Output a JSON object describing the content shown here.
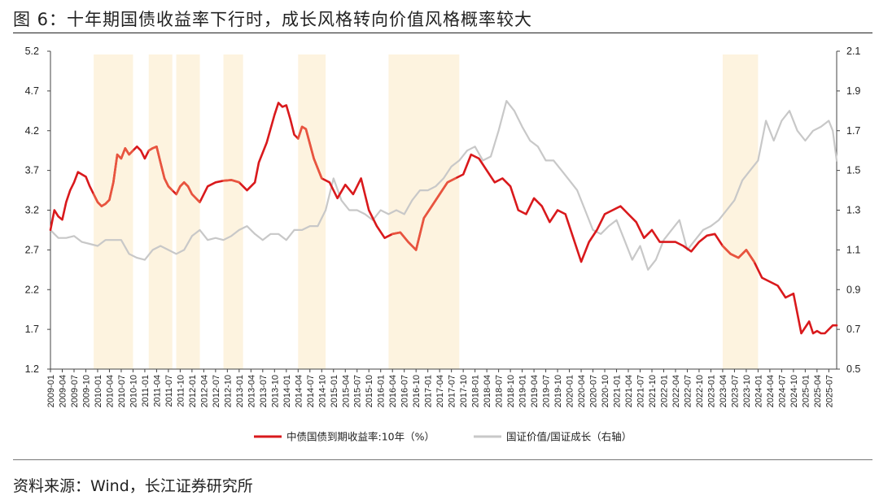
{
  "figure": {
    "title": "图 6：十年期国债收益率下行时，成长风格转向价值风格概率较大",
    "source": "资料来源：Wind，长江证券研究所"
  },
  "chart_data": {
    "type": "line",
    "title": "十年期国债收益率下行时，成长风格转向价值风格概率较大",
    "x_start": "2009-01",
    "x_end": "2025-09",
    "ylim_left": [
      1.2,
      5.2
    ],
    "ylim_right": [
      0.5,
      2.1
    ],
    "yticks_left": [
      "1.2",
      "1.7",
      "2.2",
      "2.7",
      "3.2",
      "3.7",
      "4.2",
      "4.7",
      "5.2"
    ],
    "yticks_right": [
      "0.5",
      "0.7",
      "0.9",
      "1.1",
      "1.3",
      "1.5",
      "1.7",
      "1.9",
      "2.1"
    ],
    "xticks": [
      "2009-01",
      "2009-04",
      "2009-07",
      "2009-10",
      "2010-01",
      "2010-04",
      "2010-07",
      "2010-10",
      "2011-01",
      "2011-04",
      "2011-07",
      "2011-10",
      "2012-01",
      "2012-04",
      "2012-07",
      "2012-10",
      "2013-01",
      "2013-04",
      "2013-07",
      "2013-10",
      "2014-01",
      "2014-04",
      "2014-07",
      "2014-10",
      "2015-01",
      "2015-04",
      "2015-07",
      "2015-10",
      "2016-01",
      "2016-04",
      "2016-07",
      "2016-10",
      "2017-01",
      "2017-04",
      "2017-07",
      "2017-10",
      "2018-01",
      "2018-04",
      "2018-07",
      "2018-10",
      "2019-01",
      "2019-04",
      "2019-07",
      "2019-10",
      "2020-01",
      "2020-04",
      "2020-07",
      "2020-10",
      "2021-01",
      "2021-04",
      "2021-07",
      "2021-10",
      "2022-01",
      "2022-04",
      "2022-07",
      "2022-10",
      "2023-01",
      "2023-04",
      "2023-07",
      "2023-10",
      "2024-01",
      "2024-04",
      "2024-07",
      "2024-10",
      "2025-01",
      "2025-04",
      "2025-07"
    ],
    "shaded_periods": [
      {
        "start": "2009-12",
        "end": "2010-10"
      },
      {
        "start": "2011-02",
        "end": "2011-08"
      },
      {
        "start": "2011-09",
        "end": "2012-03"
      },
      {
        "start": "2012-09",
        "end": "2013-02"
      },
      {
        "start": "2014-04",
        "end": "2014-11"
      },
      {
        "start": "2016-03",
        "end": "2017-09"
      },
      {
        "start": "2023-04",
        "end": "2024-01"
      }
    ],
    "series": [
      {
        "name": "中债国债到期收益率:10年（%）",
        "axis": "left",
        "color": "#d9191c",
        "dates": [
          "2009-01",
          "2009-02",
          "2009-03",
          "2009-04",
          "2009-05",
          "2009-06",
          "2009-07",
          "2009-08",
          "2009-09",
          "2009-10",
          "2009-11",
          "2009-12",
          "2010-01",
          "2010-02",
          "2010-03",
          "2010-04",
          "2010-05",
          "2010-06",
          "2010-07",
          "2010-08",
          "2010-09",
          "2010-10",
          "2010-11",
          "2010-12",
          "2011-01",
          "2011-02",
          "2011-03",
          "2011-04",
          "2011-05",
          "2011-06",
          "2011-07",
          "2011-08",
          "2011-09",
          "2011-10",
          "2011-11",
          "2011-12",
          "2012-01",
          "2012-03",
          "2012-05",
          "2012-07",
          "2012-09",
          "2012-11",
          "2013-01",
          "2013-03",
          "2013-05",
          "2013-06",
          "2013-08",
          "2013-10",
          "2013-11",
          "2013-12",
          "2014-01",
          "2014-02",
          "2014-03",
          "2014-04",
          "2014-05",
          "2014-06",
          "2014-08",
          "2014-10",
          "2014-12",
          "2015-02",
          "2015-04",
          "2015-06",
          "2015-08",
          "2015-10",
          "2015-12",
          "2016-02",
          "2016-04",
          "2016-06",
          "2016-08",
          "2016-10",
          "2016-12",
          "2017-02",
          "2017-04",
          "2017-06",
          "2017-08",
          "2017-10",
          "2017-12",
          "2018-02",
          "2018-04",
          "2018-06",
          "2018-08",
          "2018-10",
          "2018-12",
          "2019-02",
          "2019-04",
          "2019-06",
          "2019-08",
          "2019-10",
          "2019-12",
          "2020-02",
          "2020-04",
          "2020-06",
          "2020-08",
          "2020-10",
          "2020-12",
          "2021-02",
          "2021-04",
          "2021-06",
          "2021-08",
          "2021-10",
          "2021-12",
          "2022-02",
          "2022-04",
          "2022-06",
          "2022-08",
          "2022-10",
          "2022-12",
          "2023-02",
          "2023-04",
          "2023-06",
          "2023-08",
          "2023-10",
          "2023-12",
          "2024-02",
          "2024-04",
          "2024-06",
          "2024-08",
          "2024-10",
          "2024-12",
          "2025-02",
          "2025-03",
          "2025-04",
          "2025-05",
          "2025-06",
          "2025-07",
          "2025-08",
          "2025-09"
        ],
        "values": [
          2.95,
          3.2,
          3.12,
          3.08,
          3.3,
          3.45,
          3.55,
          3.68,
          3.65,
          3.62,
          3.5,
          3.4,
          3.3,
          3.25,
          3.28,
          3.33,
          3.55,
          3.9,
          3.85,
          3.98,
          3.9,
          3.95,
          4.0,
          3.95,
          3.85,
          3.95,
          3.98,
          4.0,
          3.8,
          3.6,
          3.5,
          3.45,
          3.4,
          3.5,
          3.55,
          3.5,
          3.4,
          3.3,
          3.5,
          3.55,
          3.57,
          3.58,
          3.55,
          3.45,
          3.55,
          3.8,
          4.05,
          4.4,
          4.55,
          4.5,
          4.52,
          4.35,
          4.15,
          4.1,
          4.25,
          4.22,
          3.85,
          3.6,
          3.55,
          3.35,
          3.52,
          3.4,
          3.6,
          3.2,
          3.0,
          2.85,
          2.9,
          2.92,
          2.8,
          2.7,
          3.1,
          3.25,
          3.4,
          3.55,
          3.6,
          3.65,
          3.9,
          3.85,
          3.7,
          3.55,
          3.6,
          3.5,
          3.2,
          3.15,
          3.35,
          3.25,
          3.05,
          3.2,
          3.15,
          2.85,
          2.55,
          2.8,
          2.95,
          3.15,
          3.2,
          3.25,
          3.15,
          3.05,
          2.85,
          2.95,
          2.8,
          2.8,
          2.8,
          2.75,
          2.68,
          2.8,
          2.88,
          2.9,
          2.75,
          2.65,
          2.6,
          2.7,
          2.55,
          2.35,
          2.3,
          2.25,
          2.1,
          2.15,
          1.65,
          1.8,
          1.65,
          1.68,
          1.65,
          1.65,
          1.7,
          1.75,
          1.75
        ]
      },
      {
        "name": "国证价值/国证成长（右轴）",
        "axis": "right",
        "color": "#c8c8c8",
        "dates": [
          "2009-01",
          "2009-02",
          "2009-03",
          "2009-05",
          "2009-07",
          "2009-09",
          "2009-11",
          "2010-01",
          "2010-03",
          "2010-05",
          "2010-07",
          "2010-09",
          "2010-11",
          "2011-01",
          "2011-03",
          "2011-05",
          "2011-07",
          "2011-09",
          "2011-11",
          "2012-01",
          "2012-03",
          "2012-05",
          "2012-07",
          "2012-09",
          "2012-11",
          "2013-01",
          "2013-03",
          "2013-05",
          "2013-07",
          "2013-09",
          "2013-11",
          "2014-01",
          "2014-03",
          "2014-05",
          "2014-07",
          "2014-09",
          "2014-11",
          "2015-01",
          "2015-03",
          "2015-05",
          "2015-07",
          "2015-09",
          "2015-11",
          "2016-01",
          "2016-03",
          "2016-05",
          "2016-07",
          "2016-09",
          "2016-11",
          "2017-01",
          "2017-03",
          "2017-05",
          "2017-07",
          "2017-09",
          "2017-11",
          "2018-01",
          "2018-03",
          "2018-05",
          "2018-07",
          "2018-09",
          "2018-11",
          "2019-01",
          "2019-03",
          "2019-05",
          "2019-07",
          "2019-09",
          "2019-11",
          "2020-01",
          "2020-03",
          "2020-05",
          "2020-07",
          "2020-09",
          "2020-11",
          "2021-01",
          "2021-03",
          "2021-05",
          "2021-07",
          "2021-09",
          "2021-11",
          "2022-01",
          "2022-03",
          "2022-05",
          "2022-07",
          "2022-09",
          "2022-11",
          "2023-01",
          "2023-03",
          "2023-05",
          "2023-07",
          "2023-09",
          "2023-11",
          "2024-01",
          "2024-03",
          "2024-05",
          "2024-07",
          "2024-09",
          "2024-11",
          "2025-01",
          "2025-03",
          "2025-05",
          "2025-07",
          "2025-08",
          "2025-09"
        ],
        "values": [
          1.2,
          1.18,
          1.16,
          1.16,
          1.17,
          1.14,
          1.13,
          1.12,
          1.15,
          1.15,
          1.15,
          1.08,
          1.06,
          1.05,
          1.1,
          1.12,
          1.1,
          1.08,
          1.1,
          1.17,
          1.2,
          1.15,
          1.16,
          1.15,
          1.17,
          1.2,
          1.22,
          1.18,
          1.15,
          1.18,
          1.18,
          1.15,
          1.2,
          1.2,
          1.22,
          1.22,
          1.3,
          1.46,
          1.35,
          1.3,
          1.3,
          1.28,
          1.25,
          1.3,
          1.28,
          1.3,
          1.28,
          1.35,
          1.4,
          1.4,
          1.42,
          1.46,
          1.52,
          1.55,
          1.6,
          1.62,
          1.55,
          1.57,
          1.7,
          1.85,
          1.8,
          1.72,
          1.65,
          1.62,
          1.55,
          1.55,
          1.5,
          1.45,
          1.4,
          1.3,
          1.2,
          1.18,
          1.22,
          1.25,
          1.15,
          1.05,
          1.12,
          1.0,
          1.05,
          1.15,
          1.2,
          1.25,
          1.1,
          1.15,
          1.2,
          1.22,
          1.25,
          1.3,
          1.35,
          1.45,
          1.5,
          1.55,
          1.75,
          1.65,
          1.75,
          1.8,
          1.7,
          1.65,
          1.7,
          1.72,
          1.75,
          1.7,
          1.55
        ]
      }
    ]
  }
}
